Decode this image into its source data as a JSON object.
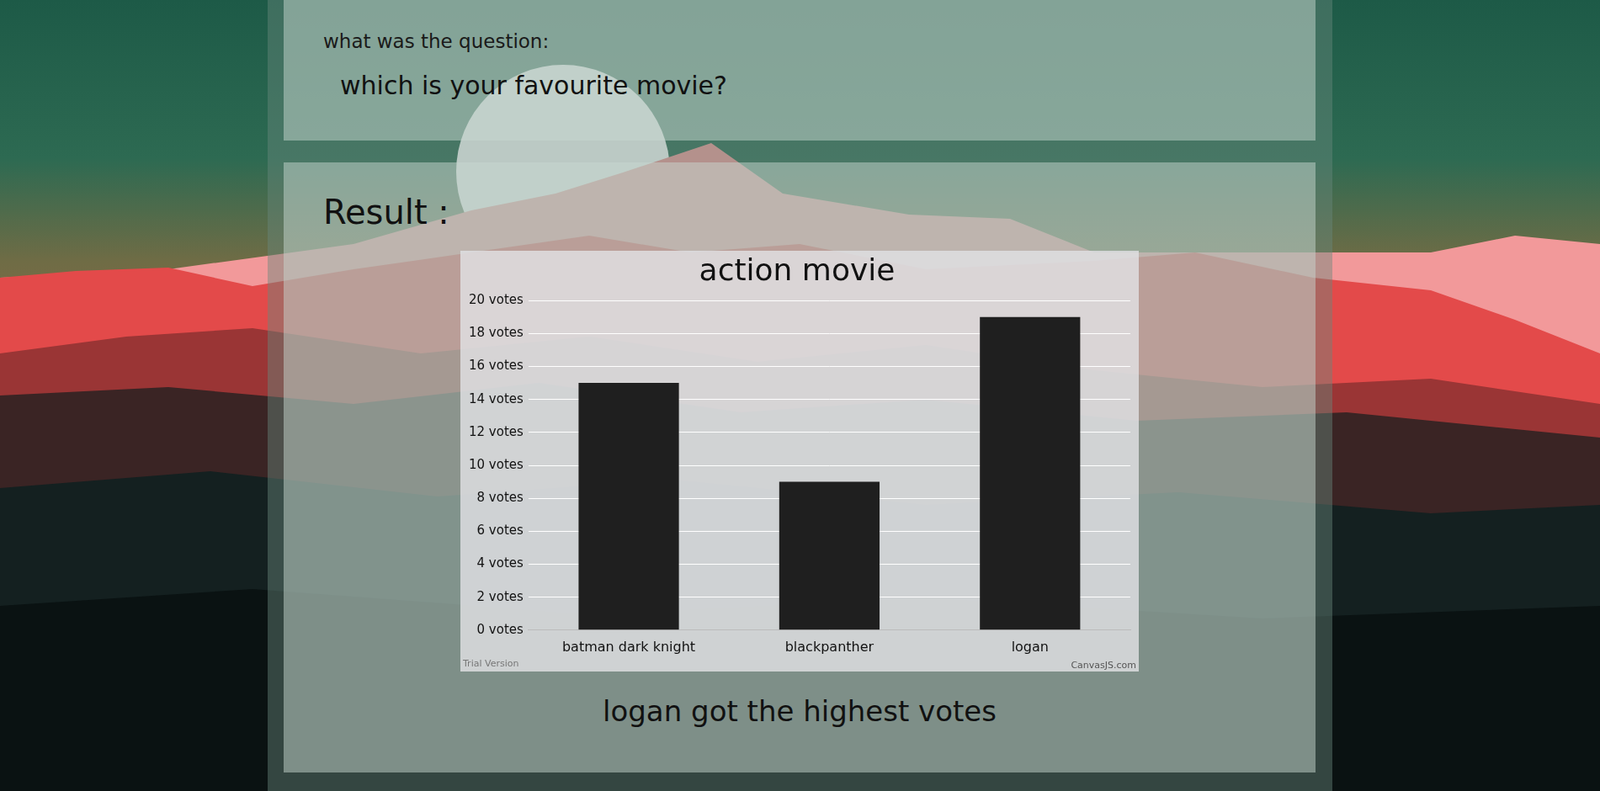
{
  "page": {
    "question_label": "what was the question:",
    "question": "which is your favourite movie?",
    "result_label": "Result :",
    "summary": "logan got the highest votes",
    "watermarks": [
      "Trial Version",
      "CanvasJS.com"
    ]
  },
  "chart_data": {
    "type": "bar",
    "title": "action movie",
    "categories": [
      "batman dark knight",
      "blackpanther",
      "logan"
    ],
    "values": [
      15,
      9,
      19
    ],
    "color": "#1f1f1f",
    "ylim": [
      0,
      20
    ],
    "yticks": [
      {
        "value": 0,
        "label": "0 votes"
      },
      {
        "value": 2,
        "label": "2 votes"
      },
      {
        "value": 4,
        "label": "4 votes"
      },
      {
        "value": 6,
        "label": "6 votes"
      },
      {
        "value": 8,
        "label": "8 votes"
      },
      {
        "value": 10,
        "label": "10 votes"
      },
      {
        "value": 12,
        "label": "12 votes"
      },
      {
        "value": 14,
        "label": "14 votes"
      },
      {
        "value": 16,
        "label": "16 votes"
      },
      {
        "value": 18,
        "label": "18 votes"
      },
      {
        "value": 20,
        "label": "20 votes"
      }
    ],
    "grid": true
  }
}
